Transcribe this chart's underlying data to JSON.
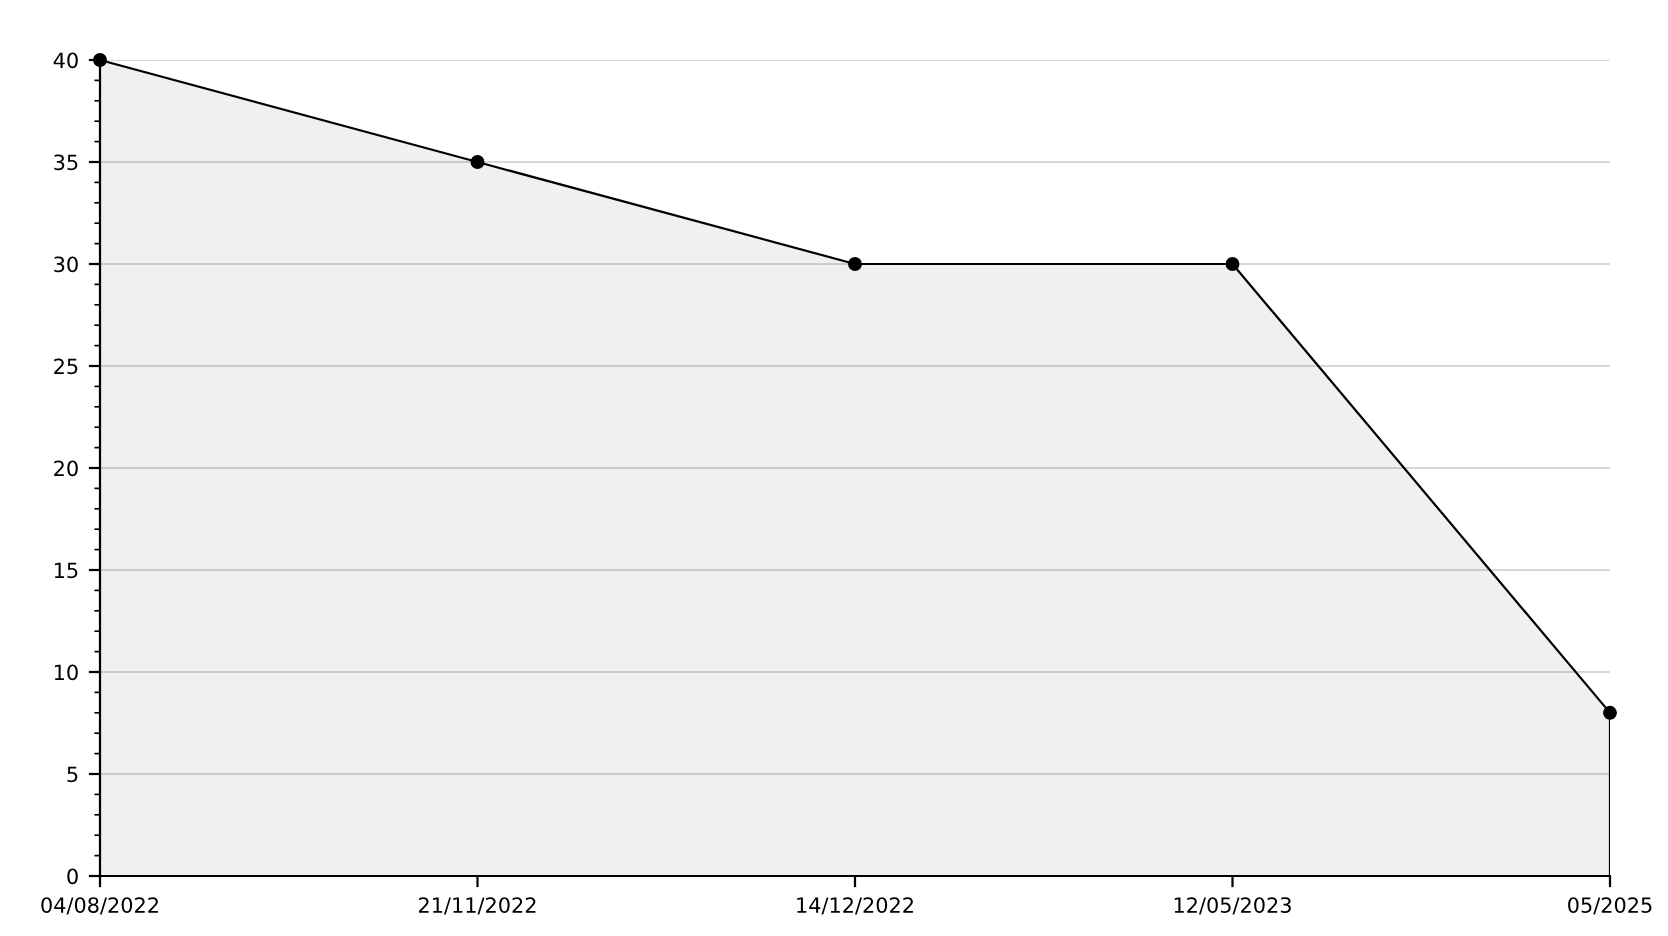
{
  "chart_data": {
    "type": "area",
    "categories": [
      "04/08/2022",
      "21/11/2022",
      "14/12/2022",
      "12/05/2023",
      "05/2025"
    ],
    "series": [
      {
        "color": "#000000",
        "values": [
          40,
          35,
          30,
          30,
          8
        ]
      }
    ],
    "ylim": [
      0,
      40
    ],
    "yticks": [
      0,
      5,
      10,
      15,
      20,
      25,
      30,
      35,
      40
    ],
    "grid": "y",
    "marker": "circle",
    "line_style": "solid",
    "legend": false
  }
}
